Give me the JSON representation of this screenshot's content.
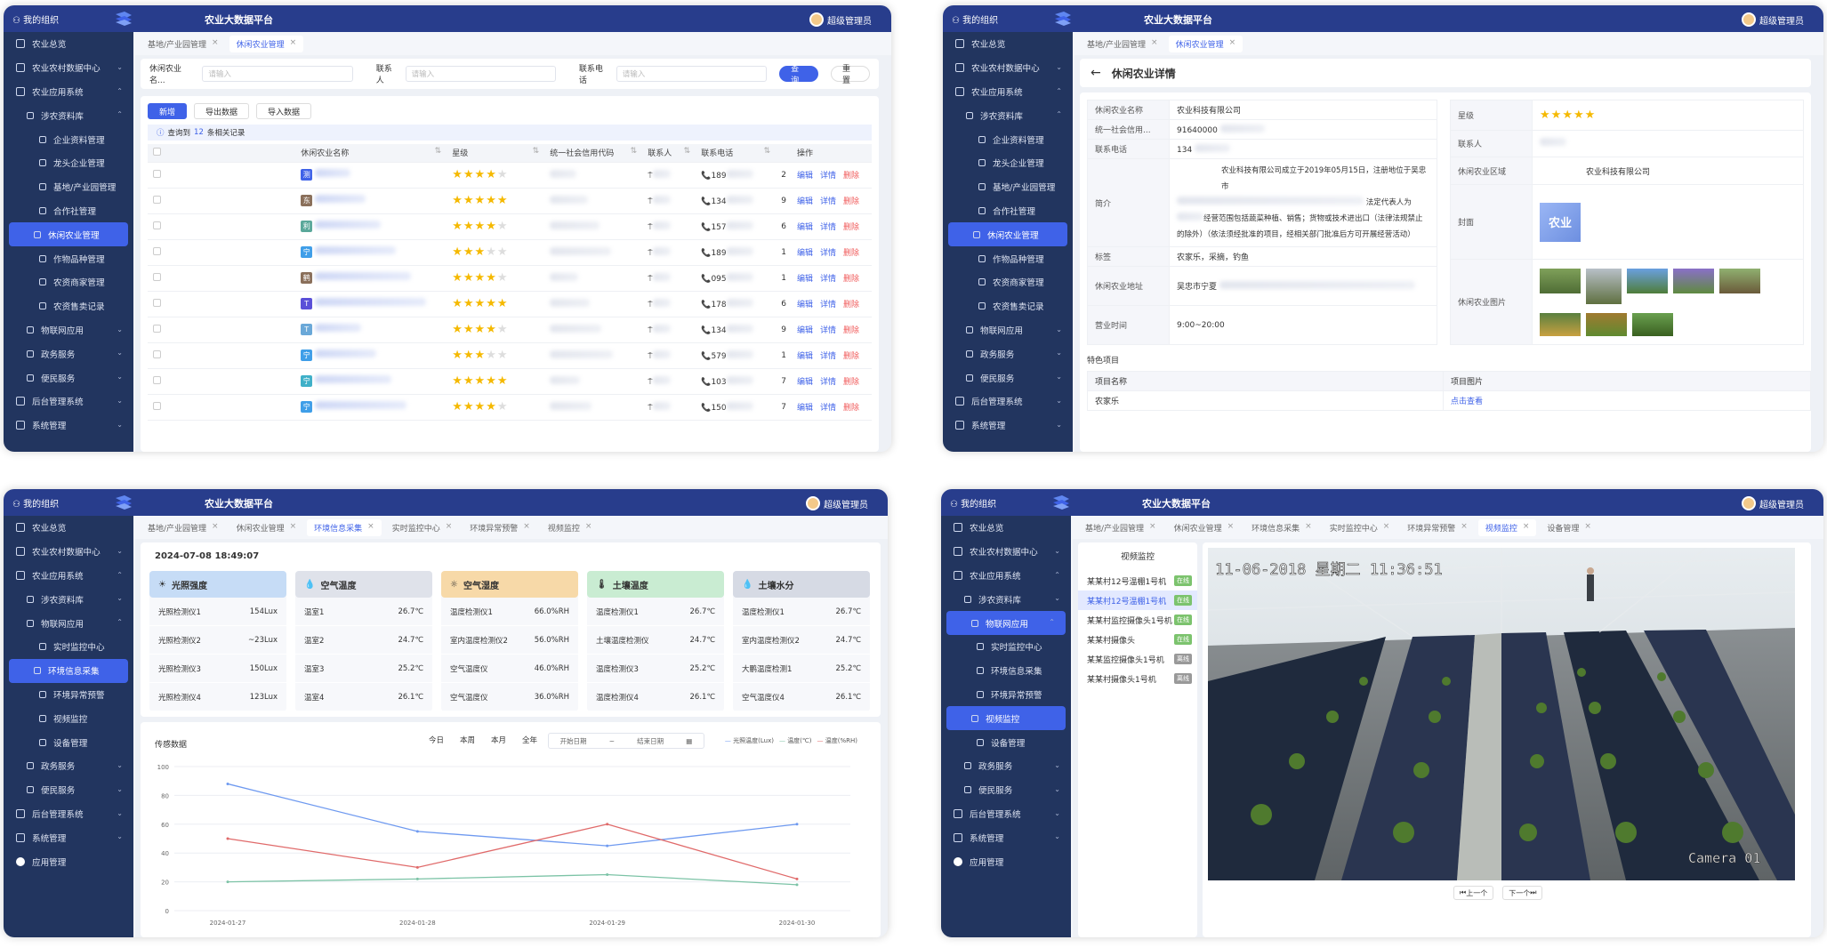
{
  "common": {
    "org": "我的组织",
    "title": "农业大数据平台",
    "user": "超级管理员"
  },
  "p1": {
    "sidebar": [
      {
        "label": "农业总览",
        "lvl": 1,
        "car": ""
      },
      {
        "label": "农业农村数据中心",
        "lvl": 1,
        "car": "⌄"
      },
      {
        "label": "农业应用系统",
        "lvl": 1,
        "car": "⌃"
      },
      {
        "label": "涉农资料库",
        "lvl": 2,
        "car": "⌃"
      },
      {
        "label": "企业资料管理",
        "lvl": 3,
        "car": ""
      },
      {
        "label": "龙头企业管理",
        "lvl": 3,
        "car": ""
      },
      {
        "label": "基地/产业园管理",
        "lvl": 3,
        "car": ""
      },
      {
        "label": "合作社管理",
        "lvl": 3,
        "car": ""
      },
      {
        "label": "休闲农业管理",
        "lvl": 3,
        "car": "",
        "act": true
      },
      {
        "label": "作物品种管理",
        "lvl": 3,
        "car": ""
      },
      {
        "label": "农资商家管理",
        "lvl": 3,
        "car": ""
      },
      {
        "label": "农资售卖记录",
        "lvl": 3,
        "car": ""
      },
      {
        "label": "物联网应用",
        "lvl": 2,
        "car": "⌄"
      },
      {
        "label": "政务服务",
        "lvl": 2,
        "car": "⌄"
      },
      {
        "label": "便民服务",
        "lvl": 2,
        "car": "⌄"
      },
      {
        "label": "后台管理系统",
        "lvl": 1,
        "car": "⌄"
      },
      {
        "label": "系统管理",
        "lvl": 1,
        "car": "⌄"
      }
    ],
    "tabs": [
      {
        "label": "基地/产业园管理",
        "on": false
      },
      {
        "label": "休闲农业管理",
        "on": true
      }
    ],
    "search": {
      "name_label": "休闲农业名...",
      "name_ph": "请输入",
      "contact_label": "联系人",
      "contact_ph": "请输入",
      "phone_label": "联系电话",
      "phone_ph": "请输入",
      "query": "查询",
      "reset": "重置"
    },
    "actions": {
      "add": "新增",
      "export": "导出数据",
      "import": "导入数据"
    },
    "summary": {
      "prefix": "查询到",
      "count": "12",
      "suffix": "条相关记录"
    },
    "columns": [
      "休闲农业名称",
      "星级",
      "统一社会信用代码",
      "联系人",
      "联系电话",
      "",
      "操作"
    ],
    "ops": {
      "edit": "编辑",
      "detail": "详情",
      "del": "删除"
    },
    "rows": [
      {
        "badge": "测",
        "color": "#3f62e8",
        "stars": 4,
        "phone": "189",
        "num": "2"
      },
      {
        "badge": "东",
        "color": "#8a6f5a",
        "stars": 5,
        "phone": "134",
        "num": "9"
      },
      {
        "badge": "利",
        "color": "#5aa89a",
        "stars": 4,
        "phone": "157",
        "num": "6"
      },
      {
        "badge": "宁",
        "color": "#3f9ee8",
        "stars": 3,
        "phone": "189",
        "num": "1"
      },
      {
        "badge": "鹤",
        "color": "#8a6f5a",
        "stars": 4,
        "phone": "095",
        "num": "1"
      },
      {
        "badge": "T",
        "color": "#5a4fd8",
        "stars": 5,
        "phone": "178",
        "num": "6"
      },
      {
        "badge": "T",
        "color": "#6aa8d8",
        "stars": 4,
        "phone": "134",
        "num": "9"
      },
      {
        "badge": "宁",
        "color": "#3f9ee8",
        "stars": 3,
        "phone": "579",
        "num": "1"
      },
      {
        "badge": "宁",
        "color": "#3fb0c8",
        "stars": 5,
        "phone": "103",
        "num": "7"
      },
      {
        "badge": "宁",
        "color": "#3f9ee8",
        "stars": 4,
        "phone": "150",
        "num": "7"
      }
    ]
  },
  "p2": {
    "tabs": [
      {
        "label": "基地/产业园管理",
        "on": false
      },
      {
        "label": "休闲农业管理",
        "on": true
      }
    ],
    "back": "←",
    "heading": "休闲农业详情",
    "left": [
      {
        "k": "休闲农业名称",
        "v": "农业科技有限公司"
      },
      {
        "k": "统一社会信用...",
        "v": "91640000"
      },
      {
        "k": "联系电话",
        "v": "134"
      },
      {
        "k": "简介",
        "v": "农业科技有限公司成立于2019年05月15日，注册地位于吴忠市"
      },
      {
        "k": "标签",
        "v": "农家乐，采摘，钓鱼"
      },
      {
        "k": "休闲农业地址",
        "v": "吴忠市宁夏"
      },
      {
        "k": "营业时间",
        "v": "9:00~20:00"
      }
    ],
    "intro2": "法定代表人为",
    "intro3": "经营范围包括蔬菜种植、销售；货物或技术进出口（法律法规禁止",
    "intro4": "的除外）（依法须经批准的项目，经相关部门批准后方可开展经营活动）",
    "right": {
      "star_label": "星级",
      "contact_label": "联系人",
      "region_label": "休闲农业区域",
      "region": "农业科技有限公司",
      "cover_label": "封面",
      "cover_text": "农业",
      "pics_label": "休闲农业图片"
    },
    "special": {
      "title": "特色项目",
      "col1": "项目名称",
      "col2": "项目图片",
      "item": "农家乐",
      "link": "点击查看"
    }
  },
  "p3": {
    "sidebar": [
      {
        "label": "农业总览",
        "lvl": 1,
        "car": ""
      },
      {
        "label": "农业农村数据中心",
        "lvl": 1,
        "car": "⌄"
      },
      {
        "label": "农业应用系统",
        "lvl": 1,
        "car": "⌃"
      },
      {
        "label": "涉农资料库",
        "lvl": 2,
        "car": "⌄"
      },
      {
        "label": "物联网应用",
        "lvl": 2,
        "car": "⌃"
      },
      {
        "label": "实时监控中心",
        "lvl": 3,
        "car": ""
      },
      {
        "label": "环境信息采集",
        "lvl": 3,
        "car": "",
        "act": true
      },
      {
        "label": "环境异常预警",
        "lvl": 3,
        "car": ""
      },
      {
        "label": "视频监控",
        "lvl": 3,
        "car": ""
      },
      {
        "label": "设备管理",
        "lvl": 3,
        "car": ""
      },
      {
        "label": "政务服务",
        "lvl": 2,
        "car": "⌄"
      },
      {
        "label": "便民服务",
        "lvl": 2,
        "car": "⌄"
      },
      {
        "label": "后台管理系统",
        "lvl": 1,
        "car": "⌄"
      },
      {
        "label": "系统管理",
        "lvl": 1,
        "car": "⌄"
      },
      {
        "label": "应用管理",
        "lvl": 1,
        "car": "",
        "dot": true
      }
    ],
    "tabs": [
      {
        "label": "基地/产业园管理",
        "on": false
      },
      {
        "label": "休闲农业管理",
        "on": false
      },
      {
        "label": "环境信息采集",
        "on": true
      },
      {
        "label": "实时监控中心",
        "on": false
      },
      {
        "label": "环境异常预警",
        "on": false
      },
      {
        "label": "视频监控",
        "on": false
      }
    ],
    "datetime": "2024-07-08 18:49:07",
    "cards": [
      {
        "title": "光照强度",
        "icon": "☀",
        "bg": "#c6dcf6",
        "rows": [
          [
            "光照检测仪1",
            "154Lux"
          ],
          [
            "光照检测仪2",
            "~23Lux"
          ],
          [
            "光照检测仪3",
            "150Lux"
          ],
          [
            "光照检测仪4",
            "123Lux"
          ]
        ]
      },
      {
        "title": "空气温度",
        "icon": "💧",
        "bg": "#dfe2ea",
        "rows": [
          [
            "温室1",
            "26.7℃"
          ],
          [
            "温室2",
            "24.7℃"
          ],
          [
            "温室3",
            "25.2℃"
          ],
          [
            "温室4",
            "26.1℃"
          ]
        ]
      },
      {
        "title": "空气湿度",
        "icon": "☼",
        "bg": "#f7d9a8",
        "rows": [
          [
            "温度检测仪1",
            "66.0%RH"
          ],
          [
            "室内温度检测仪2",
            "56.0%RH"
          ],
          [
            "空气温度仪",
            "46.0%RH"
          ],
          [
            "空气温度仪",
            "36.0%RH"
          ]
        ]
      },
      {
        "title": "土壤温度",
        "icon": "🌡",
        "bg": "#c9ecd2",
        "rows": [
          [
            "温度检测仪1",
            "26.7℃"
          ],
          [
            "土壤温度检测仪",
            "24.7℃"
          ],
          [
            "温度检测仪3",
            "25.2℃"
          ],
          [
            "温度检测仪4",
            "26.1℃"
          ]
        ]
      },
      {
        "title": "土壤水分",
        "icon": "💧",
        "bg": "#d6dae4",
        "rows": [
          [
            "温度检测仪1",
            "26.7℃"
          ],
          [
            "室内温度检测仪2",
            "24.7℃"
          ],
          [
            "大鹏温度检测1",
            "25.2℃"
          ],
          [
            "空气温度仪4",
            "26.1℃"
          ]
        ]
      }
    ],
    "sensor_title": "传感数据",
    "ranges": [
      "今日",
      "本周",
      "本月",
      "全年"
    ],
    "date_start": "开始日期",
    "date_end": "结束日期",
    "chart_data": {
      "type": "line",
      "title": "传感数据",
      "x": [
        "2024-01-27",
        "2024-01-28",
        "2024-01-29",
        "2024-01-30"
      ],
      "ylim": [
        0,
        100
      ],
      "yticks": [
        0,
        20,
        40,
        60,
        80,
        100
      ],
      "series": [
        {
          "name": "光照温度(Lux)",
          "color": "#6f9af0",
          "values": [
            88,
            55,
            45,
            60
          ]
        },
        {
          "name": "温度(℃)",
          "color": "#7cc3a6",
          "values": [
            20,
            22,
            25,
            18
          ]
        },
        {
          "name": "温度(%RH)",
          "color": "#e06a6a",
          "values": [
            50,
            30,
            60,
            22
          ]
        }
      ],
      "legend": "top-right"
    }
  },
  "p4": {
    "sidebar": [
      {
        "label": "农业总览",
        "lvl": 1,
        "car": ""
      },
      {
        "label": "农业农村数据中心",
        "lvl": 1,
        "car": "⌄"
      },
      {
        "label": "农业应用系统",
        "lvl": 1,
        "car": "⌃"
      },
      {
        "label": "涉农资料库",
        "lvl": 2,
        "car": "⌄"
      },
      {
        "label": "物联网应用",
        "lvl": 2,
        "car": "⌃",
        "act": true
      },
      {
        "label": "实时监控中心",
        "lvl": 3,
        "car": ""
      },
      {
        "label": "环境信息采集",
        "lvl": 3,
        "car": ""
      },
      {
        "label": "环境异常预警",
        "lvl": 3,
        "car": ""
      },
      {
        "label": "视频监控",
        "lvl": 3,
        "car": "",
        "act": true
      },
      {
        "label": "设备管理",
        "lvl": 3,
        "car": ""
      },
      {
        "label": "政务服务",
        "lvl": 2,
        "car": "⌄"
      },
      {
        "label": "便民服务",
        "lvl": 2,
        "car": "⌄"
      },
      {
        "label": "后台管理系统",
        "lvl": 1,
        "car": "⌄"
      },
      {
        "label": "系统管理",
        "lvl": 1,
        "car": "⌄"
      },
      {
        "label": "应用管理",
        "lvl": 1,
        "car": "",
        "dot": true
      }
    ],
    "tabs": [
      {
        "label": "基地/产业园管理",
        "on": false
      },
      {
        "label": "休闲农业管理",
        "on": false
      },
      {
        "label": "环境信息采集",
        "on": false
      },
      {
        "label": "实时监控中心",
        "on": false
      },
      {
        "label": "环境异常预警",
        "on": false
      },
      {
        "label": "视频监控",
        "on": true
      },
      {
        "label": "设备管理",
        "on": false
      }
    ],
    "list_title": "视频监控",
    "cams": [
      {
        "label": "某某村12号温棚1号机",
        "tag": "在线",
        "on": false,
        "online": true
      },
      {
        "label": "某某村12号温棚1号机",
        "tag": "在线",
        "on": true,
        "online": true
      },
      {
        "label": "某某村监控摄像头1号机",
        "tag": "在线",
        "on": false,
        "online": true
      },
      {
        "label": "某某村摄像头",
        "tag": "在线",
        "on": false,
        "online": true
      },
      {
        "label": "某某监控摄像头1号机",
        "tag": "离线",
        "on": false,
        "online": false
      },
      {
        "label": "某某村摄像头1号机",
        "tag": "离线",
        "on": false,
        "online": false
      }
    ],
    "osd_time": "11-06-2018 星期二 11:36:51",
    "osd_cam": "Camera 01",
    "prev": "上一个",
    "next": "下一个"
  }
}
